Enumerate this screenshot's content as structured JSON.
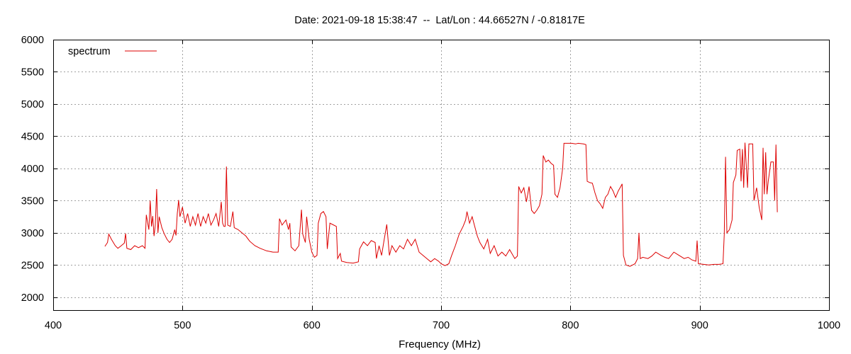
{
  "chart_data": {
    "type": "line",
    "title": "Date: 2021-09-18 15:38:47  --  Lat/Lon : 44.66527N / -0.81817E",
    "xlabel": "Frequency (MHz)",
    "ylabel": "",
    "xlim": [
      400,
      1000
    ],
    "ylim": [
      1800,
      6000
    ],
    "xticks": [
      400,
      500,
      600,
      700,
      800,
      900,
      1000
    ],
    "yticks": [
      2000,
      2500,
      3000,
      3500,
      4000,
      4500,
      5000,
      5500,
      6000
    ],
    "grid": true,
    "legend_position": "top-left",
    "colors": {
      "spectrum": "#dd0000",
      "grid": "#a0a0a0",
      "axis": "#000000"
    },
    "series": [
      {
        "name": "spectrum",
        "color": "#dd0000",
        "points": [
          [
            440,
            2790
          ],
          [
            442,
            2850
          ],
          [
            443,
            2980
          ],
          [
            445,
            2900
          ],
          [
            448,
            2800
          ],
          [
            450,
            2760
          ],
          [
            452,
            2790
          ],
          [
            455,
            2840
          ],
          [
            456,
            2990
          ],
          [
            457,
            2760
          ],
          [
            460,
            2740
          ],
          [
            463,
            2800
          ],
          [
            466,
            2770
          ],
          [
            469,
            2800
          ],
          [
            471,
            2760
          ],
          [
            472,
            3280
          ],
          [
            474,
            3050
          ],
          [
            475,
            3500
          ],
          [
            476,
            3100
          ],
          [
            477,
            3260
          ],
          [
            478,
            2950
          ],
          [
            479,
            3120
          ],
          [
            480,
            3680
          ],
          [
            481,
            3000
          ],
          [
            482,
            3250
          ],
          [
            484,
            3080
          ],
          [
            486,
            2980
          ],
          [
            488,
            2900
          ],
          [
            490,
            2850
          ],
          [
            492,
            2900
          ],
          [
            494,
            3050
          ],
          [
            495,
            2960
          ],
          [
            496,
            3300
          ],
          [
            497,
            3510
          ],
          [
            498,
            3250
          ],
          [
            500,
            3400
          ],
          [
            502,
            3150
          ],
          [
            504,
            3300
          ],
          [
            506,
            3100
          ],
          [
            508,
            3250
          ],
          [
            510,
            3120
          ],
          [
            512,
            3300
          ],
          [
            514,
            3100
          ],
          [
            516,
            3250
          ],
          [
            518,
            3150
          ],
          [
            520,
            3300
          ],
          [
            522,
            3120
          ],
          [
            524,
            3200
          ],
          [
            526,
            3300
          ],
          [
            528,
            3100
          ],
          [
            530,
            3480
          ],
          [
            531,
            3150
          ],
          [
            532,
            3100
          ],
          [
            533,
            3100
          ],
          [
            534,
            4030
          ],
          [
            535,
            3120
          ],
          [
            537,
            3100
          ],
          [
            539,
            3330
          ],
          [
            540,
            3080
          ],
          [
            543,
            3050
          ],
          [
            546,
            3000
          ],
          [
            549,
            2950
          ],
          [
            552,
            2870
          ],
          [
            556,
            2800
          ],
          [
            560,
            2760
          ],
          [
            565,
            2720
          ],
          [
            570,
            2700
          ],
          [
            574,
            2700
          ],
          [
            575,
            3220
          ],
          [
            577,
            3120
          ],
          [
            580,
            3200
          ],
          [
            582,
            3050
          ],
          [
            583,
            3150
          ],
          [
            584,
            2780
          ],
          [
            587,
            2720
          ],
          [
            590,
            2800
          ],
          [
            592,
            3360
          ],
          [
            593,
            2980
          ],
          [
            595,
            2850
          ],
          [
            596,
            3250
          ],
          [
            598,
            2900
          ],
          [
            600,
            2700
          ],
          [
            602,
            2620
          ],
          [
            604,
            2650
          ],
          [
            605,
            3150
          ],
          [
            607,
            3300
          ],
          [
            609,
            3330
          ],
          [
            611,
            3250
          ],
          [
            612,
            2750
          ],
          [
            614,
            3150
          ],
          [
            616,
            3130
          ],
          [
            619,
            3100
          ],
          [
            620,
            2600
          ],
          [
            622,
            2680
          ],
          [
            623,
            2560
          ],
          [
            627,
            2540
          ],
          [
            632,
            2530
          ],
          [
            636,
            2550
          ],
          [
            637,
            2750
          ],
          [
            640,
            2860
          ],
          [
            643,
            2800
          ],
          [
            646,
            2880
          ],
          [
            649,
            2850
          ],
          [
            650,
            2600
          ],
          [
            652,
            2800
          ],
          [
            654,
            2650
          ],
          [
            656,
            2900
          ],
          [
            658,
            3130
          ],
          [
            660,
            2650
          ],
          [
            662,
            2800
          ],
          [
            665,
            2700
          ],
          [
            668,
            2800
          ],
          [
            671,
            2750
          ],
          [
            674,
            2900
          ],
          [
            677,
            2800
          ],
          [
            680,
            2900
          ],
          [
            683,
            2700
          ],
          [
            686,
            2650
          ],
          [
            689,
            2600
          ],
          [
            692,
            2550
          ],
          [
            695,
            2600
          ],
          [
            698,
            2560
          ],
          [
            700,
            2520
          ],
          [
            703,
            2490
          ],
          [
            706,
            2520
          ],
          [
            708,
            2640
          ],
          [
            711,
            2800
          ],
          [
            714,
            2980
          ],
          [
            717,
            3100
          ],
          [
            719,
            3200
          ],
          [
            720,
            3330
          ],
          [
            722,
            3150
          ],
          [
            724,
            3250
          ],
          [
            726,
            3100
          ],
          [
            728,
            2950
          ],
          [
            730,
            2850
          ],
          [
            733,
            2750
          ],
          [
            736,
            2900
          ],
          [
            738,
            2680
          ],
          [
            741,
            2800
          ],
          [
            744,
            2640
          ],
          [
            747,
            2700
          ],
          [
            750,
            2640
          ],
          [
            753,
            2740
          ],
          [
            757,
            2600
          ],
          [
            759,
            2640
          ],
          [
            760,
            3720
          ],
          [
            762,
            3620
          ],
          [
            764,
            3700
          ],
          [
            766,
            3480
          ],
          [
            768,
            3720
          ],
          [
            770,
            3350
          ],
          [
            772,
            3300
          ],
          [
            774,
            3350
          ],
          [
            776,
            3420
          ],
          [
            778,
            3600
          ],
          [
            779,
            4200
          ],
          [
            781,
            4100
          ],
          [
            783,
            4130
          ],
          [
            785,
            4080
          ],
          [
            787,
            4050
          ],
          [
            788,
            3600
          ],
          [
            790,
            3550
          ],
          [
            792,
            3700
          ],
          [
            794,
            4000
          ],
          [
            795,
            4390
          ],
          [
            798,
            4390
          ],
          [
            801,
            4390
          ],
          [
            804,
            4380
          ],
          [
            806,
            4390
          ],
          [
            810,
            4380
          ],
          [
            812,
            4370
          ],
          [
            813,
            3800
          ],
          [
            815,
            3780
          ],
          [
            817,
            3770
          ],
          [
            819,
            3620
          ],
          [
            821,
            3500
          ],
          [
            823,
            3450
          ],
          [
            825,
            3380
          ],
          [
            827,
            3550
          ],
          [
            829,
            3600
          ],
          [
            831,
            3720
          ],
          [
            833,
            3650
          ],
          [
            835,
            3550
          ],
          [
            837,
            3650
          ],
          [
            839,
            3720
          ],
          [
            840,
            3760
          ],
          [
            841,
            2650
          ],
          [
            843,
            2500
          ],
          [
            846,
            2480
          ],
          [
            850,
            2520
          ],
          [
            852,
            2600
          ],
          [
            853,
            3000
          ],
          [
            854,
            2600
          ],
          [
            856,
            2620
          ],
          [
            860,
            2600
          ],
          [
            863,
            2640
          ],
          [
            866,
            2700
          ],
          [
            870,
            2650
          ],
          [
            873,
            2620
          ],
          [
            876,
            2600
          ],
          [
            880,
            2700
          ],
          [
            884,
            2650
          ],
          [
            888,
            2600
          ],
          [
            891,
            2620
          ],
          [
            894,
            2580
          ],
          [
            897,
            2560
          ],
          [
            898,
            2880
          ],
          [
            899,
            2520
          ],
          [
            903,
            2510
          ],
          [
            907,
            2500
          ],
          [
            911,
            2510
          ],
          [
            915,
            2510
          ],
          [
            918,
            2520
          ],
          [
            919,
            2980
          ],
          [
            920,
            4180
          ],
          [
            921,
            3000
          ],
          [
            923,
            3050
          ],
          [
            925,
            3200
          ],
          [
            926,
            3780
          ],
          [
            928,
            3900
          ],
          [
            929,
            4280
          ],
          [
            931,
            4300
          ],
          [
            932,
            3800
          ],
          [
            933,
            4300
          ],
          [
            934,
            3700
          ],
          [
            935,
            4400
          ],
          [
            937,
            3700
          ],
          [
            938,
            4380
          ],
          [
            941,
            4380
          ],
          [
            942,
            3500
          ],
          [
            944,
            3700
          ],
          [
            946,
            3400
          ],
          [
            948,
            3200
          ],
          [
            949,
            4320
          ],
          [
            950,
            3600
          ],
          [
            951,
            4250
          ],
          [
            952,
            3600
          ],
          [
            953,
            3800
          ],
          [
            955,
            4100
          ],
          [
            957,
            4100
          ],
          [
            958,
            3500
          ],
          [
            959,
            4370
          ],
          [
            960,
            3320
          ]
        ]
      }
    ]
  }
}
